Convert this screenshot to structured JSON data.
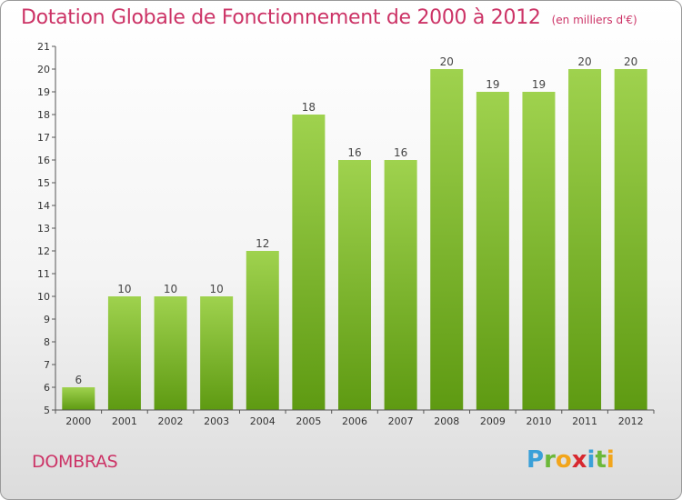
{
  "title": "Dotation Globale de Fonctionnement de 2000 à 2012",
  "subtitle": "(en milliers d'€)",
  "commune": "DOMBRAS",
  "logo_letters": [
    "P",
    "r",
    "o",
    "x",
    "i",
    "t",
    "i"
  ],
  "colors": {
    "title": "#cc3366",
    "bar_light": "#9fd24e",
    "bar_dark": "#5e9a12"
  },
  "chart_data": {
    "type": "bar",
    "categories": [
      "2000",
      "2001",
      "2002",
      "2003",
      "2004",
      "2005",
      "2006",
      "2007",
      "2008",
      "2009",
      "2010",
      "2011",
      "2012"
    ],
    "values": [
      6,
      10,
      10,
      10,
      12,
      18,
      16,
      16,
      20,
      19,
      19,
      20,
      20
    ],
    "ylim": [
      5,
      21
    ],
    "yticks": [
      5,
      6,
      7,
      8,
      9,
      10,
      11,
      12,
      13,
      14,
      15,
      16,
      17,
      18,
      19,
      20,
      21
    ],
    "grid": false,
    "title": "Dotation Globale de Fonctionnement de 2000 à 2012",
    "subtitle": "(en milliers d'€)"
  }
}
